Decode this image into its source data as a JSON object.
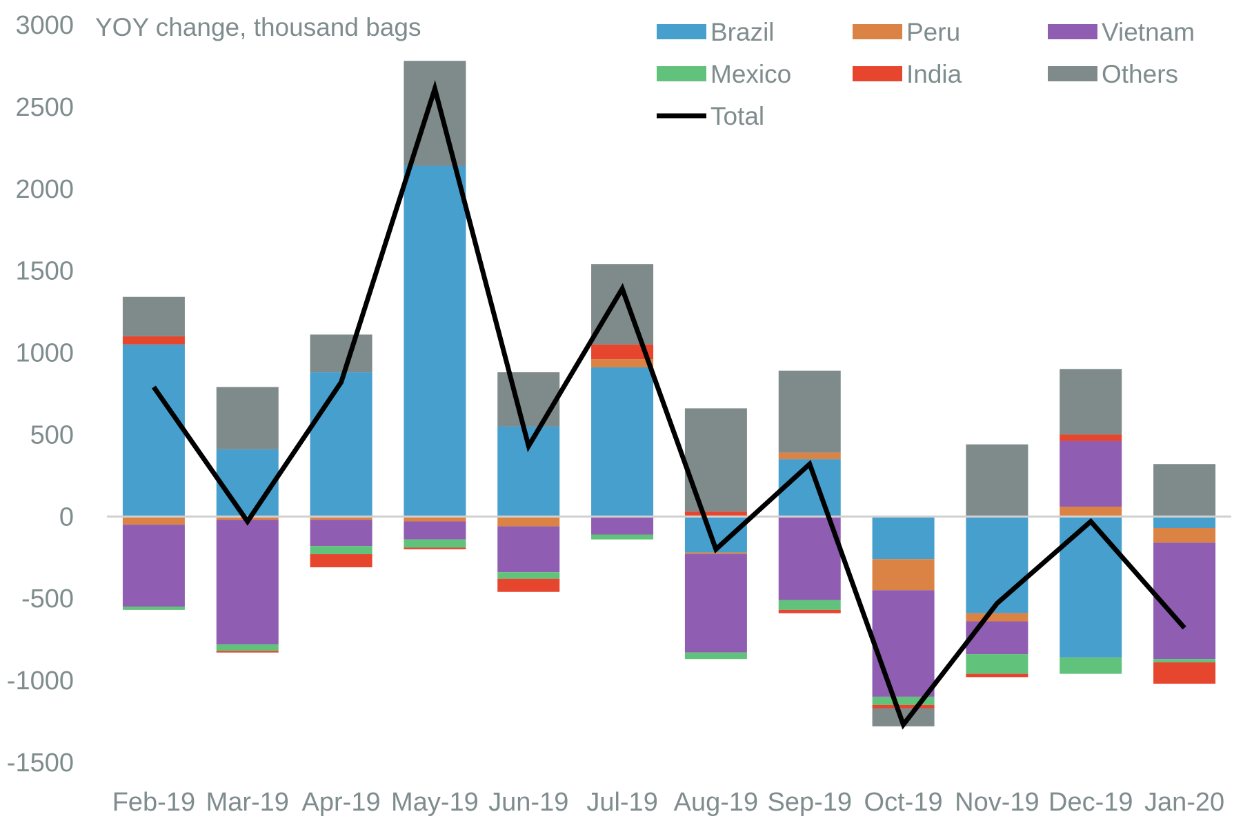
{
  "chart_data": {
    "type": "bar",
    "stacked": true,
    "title": "",
    "ylabel": "YOY change, thousand bags",
    "xlabel": "",
    "ylim": [
      -1500,
      3000
    ],
    "yticks": [
      3000,
      2500,
      2000,
      1500,
      1000,
      500,
      0,
      -500,
      -1000,
      -1500
    ],
    "categories": [
      "Feb-19",
      "Mar-19",
      "Apr-19",
      "May-19",
      "Jun-19",
      "Jul-19",
      "Aug-19",
      "Sep-19",
      "Oct-19",
      "Nov-19",
      "Dec-19",
      "Jan-20"
    ],
    "series": [
      {
        "name": "Brazil",
        "color": "#469fcc",
        "values": [
          1050,
          410,
          880,
          2140,
          550,
          910,
          -220,
          350,
          -260,
          -590,
          -860,
          -70
        ]
      },
      {
        "name": "Peru",
        "color": "#db8345",
        "values": [
          -50,
          -20,
          -20,
          -30,
          -60,
          50,
          -10,
          40,
          -190,
          -50,
          60,
          -90
        ]
      },
      {
        "name": "Vietnam",
        "color": "#8f5db1",
        "values": [
          -500,
          -760,
          -160,
          -110,
          -280,
          -110,
          -600,
          -510,
          -650,
          -200,
          400,
          -710
        ]
      },
      {
        "name": "Mexico",
        "color": "#61c37b",
        "values": [
          -20,
          -40,
          -50,
          -50,
          -40,
          -30,
          -40,
          -60,
          -50,
          -120,
          -100,
          -20
        ]
      },
      {
        "name": "India",
        "color": "#e6452e",
        "values": [
          50,
          -10,
          -80,
          -10,
          -80,
          90,
          30,
          -20,
          -20,
          -20,
          40,
          -130
        ]
      },
      {
        "name": "Others",
        "color": "#7f8a8b",
        "values": [
          240,
          380,
          230,
          640,
          330,
          490,
          630,
          500,
          -110,
          440,
          400,
          320
        ]
      }
    ],
    "line": {
      "name": "Total",
      "color": "#000000",
      "values": [
        790,
        -30,
        820,
        2610,
        430,
        1390,
        -200,
        320,
        -1270,
        -530,
        -30,
        -680
      ]
    },
    "legend": {
      "placement": "top-right",
      "columns": 3
    },
    "grid": false
  }
}
